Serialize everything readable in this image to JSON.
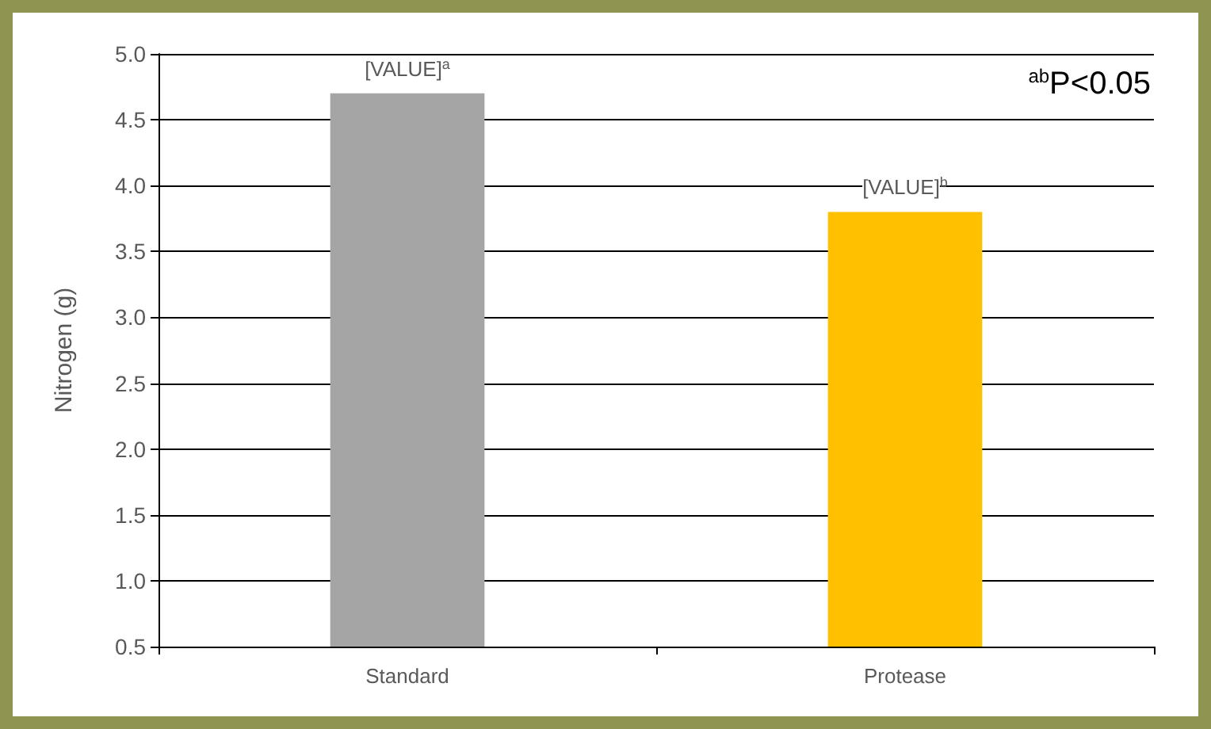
{
  "chart_data": {
    "type": "bar",
    "ylabel": "Nitrogen (g)",
    "categories": [
      "Standard",
      "Protease"
    ],
    "values": [
      4.7,
      3.8
    ],
    "colors": [
      "#a5a5a5",
      "#ffc000"
    ],
    "value_labels": [
      "[VALUE]$^{a}$",
      "[VALUE]$^{b}$"
    ],
    "annotations": [
      "$^{ab}$P<0.05"
    ],
    "ylim": [
      0.5,
      5.0
    ],
    "yticks": [
      0.5,
      {
        "value": 1,
        "label": "1.0"
      },
      1.5,
      {
        "value": 2,
        "label": "2.0"
      },
      2.5,
      {
        "value": 3,
        "label": "3.0"
      },
      3.5,
      {
        "value": 4,
        "label": "4.0"
      },
      4.5,
      {
        "value": 5,
        "label": "5.0"
      }
    ],
    "grid": "y"
  }
}
